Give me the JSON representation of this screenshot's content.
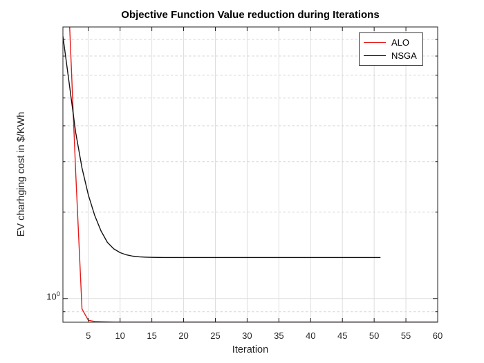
{
  "title": "Objective Function Value reduction during Iterations",
  "axes": {
    "xlabel": "Iteration",
    "ylabel": "EV charhging cost in $/KWh",
    "y_tick_base": "10",
    "y_tick_exp": "0"
  },
  "legend": {
    "items": [
      {
        "label": "ALO",
        "color": "#e51a1a"
      },
      {
        "label": "NSGA",
        "color": "#111111"
      }
    ]
  },
  "colors": {
    "axis": "#1f1f1f",
    "grid": "#dedede",
    "minor_grid": "#d6d6d6",
    "tick_text": "#262626",
    "background": "#ffffff"
  },
  "chart_data": {
    "type": "line",
    "title": "Objective Function Value reduction during Iterations",
    "xlabel": "Iteration",
    "ylabel": "EV charhging cost in $/KWh",
    "y_scale": "log",
    "xlim": [
      1,
      60
    ],
    "ylim": [
      0.827,
      8.84
    ],
    "x_ticks": [
      5,
      10,
      15,
      20,
      25,
      30,
      35,
      40,
      45,
      50,
      55,
      60
    ],
    "y_major_gridlines": [
      1
    ],
    "y_minor_gridlines": [
      8,
      7,
      6,
      5,
      4,
      3,
      2,
      0.9
    ],
    "grid": true,
    "legend_position": "top-right",
    "series": [
      {
        "name": "ALO",
        "color": "#e51a1a",
        "x": [
          1,
          2,
          3,
          4,
          5,
          6,
          7,
          8,
          9,
          10,
          11,
          12,
          13,
          14,
          15,
          16,
          17,
          18,
          19,
          20,
          21,
          22,
          23,
          24,
          25,
          26,
          27,
          28,
          29,
          30,
          31,
          32,
          33,
          34,
          35,
          36,
          37,
          38,
          39,
          40,
          41,
          42,
          43,
          44,
          45,
          46,
          47,
          48,
          49,
          50,
          51,
          52,
          53,
          54,
          55,
          56,
          57,
          58,
          59,
          60
        ],
        "y": [
          28,
          9.5,
          2.78,
          0.92,
          0.84,
          0.832,
          0.83,
          0.829,
          0.828,
          0.828,
          0.828,
          0.828,
          0.828,
          0.828,
          0.828,
          0.828,
          0.828,
          0.828,
          0.828,
          0.828,
          0.828,
          0.828,
          0.828,
          0.828,
          0.828,
          0.828,
          0.828,
          0.828,
          0.828,
          0.828,
          0.828,
          0.828,
          0.828,
          0.828,
          0.828,
          0.828,
          0.828,
          0.828,
          0.828,
          0.828,
          0.828,
          0.828,
          0.828,
          0.828,
          0.828,
          0.828,
          0.828,
          0.828,
          0.828,
          0.828,
          0.828,
          0.828,
          0.828,
          0.828,
          0.828,
          0.828,
          0.828,
          0.828,
          0.828,
          0.828
        ]
      },
      {
        "name": "NSGA",
        "color": "#111111",
        "x": [
          1,
          2,
          3,
          4,
          5,
          6,
          7,
          8,
          9,
          10,
          11,
          12,
          13,
          14,
          15,
          16,
          17,
          18,
          19,
          20,
          21,
          22,
          23,
          24,
          25,
          26,
          27,
          28,
          29,
          30,
          31,
          32,
          33,
          34,
          35,
          36,
          37,
          38,
          39,
          40,
          41,
          42,
          43,
          44,
          45,
          46,
          47,
          48,
          49,
          50,
          51
        ],
        "y": [
          8.2,
          5.6,
          3.8,
          2.85,
          2.3,
          1.95,
          1.72,
          1.57,
          1.49,
          1.445,
          1.42,
          1.405,
          1.398,
          1.394,
          1.392,
          1.391,
          1.39,
          1.39,
          1.39,
          1.39,
          1.39,
          1.39,
          1.39,
          1.39,
          1.39,
          1.39,
          1.39,
          1.39,
          1.39,
          1.39,
          1.39,
          1.39,
          1.39,
          1.39,
          1.39,
          1.39,
          1.39,
          1.39,
          1.39,
          1.39,
          1.39,
          1.39,
          1.39,
          1.39,
          1.39,
          1.39,
          1.39,
          1.39,
          1.39,
          1.39,
          1.39
        ]
      }
    ]
  }
}
